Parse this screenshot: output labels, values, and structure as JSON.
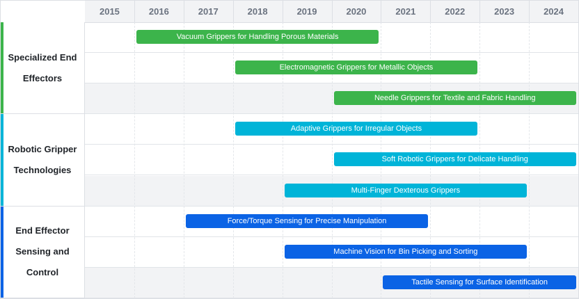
{
  "chart_data": {
    "type": "gantt",
    "title": "",
    "years": [
      "2015",
      "2016",
      "2017",
      "2018",
      "2019",
      "2020",
      "2021",
      "2022",
      "2023",
      "2024"
    ],
    "x_range": [
      2015,
      2025
    ],
    "groups": [
      {
        "name": "Specialized End Effectors",
        "color": "#3cb44b",
        "tasks": [
          {
            "label": "Vacuum Grippers for Handling Porous Materials",
            "start": 2016,
            "end": 2021
          },
          {
            "label": "Electromagnetic Grippers for Metallic Objects",
            "start": 2018,
            "end": 2023
          },
          {
            "label": "Needle Grippers for Textile and Fabric Handling",
            "start": 2020,
            "end": 2025
          }
        ]
      },
      {
        "name": "Robotic Gripper Technologies",
        "color": "#00b4d8",
        "tasks": [
          {
            "label": "Adaptive Grippers for Irregular Objects",
            "start": 2018,
            "end": 2023
          },
          {
            "label": "Soft Robotic Grippers for Delicate Handling",
            "start": 2020,
            "end": 2025
          },
          {
            "label": "Multi-Finger Dexterous Grippers",
            "start": 2019,
            "end": 2024
          }
        ]
      },
      {
        "name": "End Effector Sensing and Control",
        "color": "#0b63e5",
        "tasks": [
          {
            "label": "Force/Torque Sensing for Precise Manipulation",
            "start": 2017,
            "end": 2022
          },
          {
            "label": "Machine Vision for Bin Picking and Sorting",
            "start": 2019,
            "end": 2024
          },
          {
            "label": "Tactile Sensing for Surface Identification",
            "start": 2021,
            "end": 2025
          }
        ]
      }
    ]
  }
}
